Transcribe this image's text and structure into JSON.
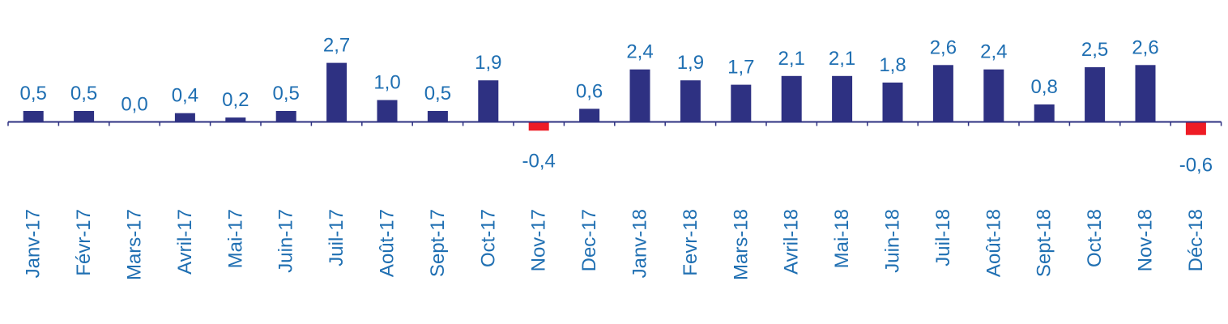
{
  "chart_data": {
    "type": "bar",
    "categories": [
      "Janv-17",
      "Févr-17",
      "Mars-17",
      "Avril-17",
      "Mai-17",
      "Juin-17",
      "Juil-17",
      "Août-17",
      "Sept-17",
      "Oct-17",
      "Nov-17",
      "Dec-17",
      "Janv-18",
      "Fevr-18",
      "Mars-18",
      "Avril-18",
      "Mai-18",
      "Juin-18",
      "Juil-18",
      "Août-18",
      "Sept-18",
      "Oct-18",
      "Nov-18",
      "Déc-18"
    ],
    "values": [
      0.5,
      0.5,
      0.0,
      0.4,
      0.2,
      0.5,
      2.7,
      1.0,
      0.5,
      1.9,
      -0.4,
      0.6,
      2.4,
      1.9,
      1.7,
      2.1,
      2.1,
      1.8,
      2.6,
      2.4,
      0.8,
      2.5,
      2.6,
      -0.6
    ],
    "value_labels": [
      "0,5",
      "0,5",
      "0,0",
      "0,4",
      "0,2",
      "0,5",
      "2,7",
      "1,0",
      "0,5",
      "1,9",
      "-0,4",
      "0,6",
      "2,4",
      "1,9",
      "1,7",
      "2,1",
      "2,1",
      "1,8",
      "2,6",
      "2,4",
      "0,8",
      "2,5",
      "2,6",
      "-0,6"
    ],
    "title": "",
    "xlabel": "",
    "ylabel": "",
    "grid": false,
    "colors": {
      "positive": "#2e3182",
      "negative": "#ee1c25",
      "axis": "#2e3182",
      "labels": "#1f6fb2"
    }
  }
}
